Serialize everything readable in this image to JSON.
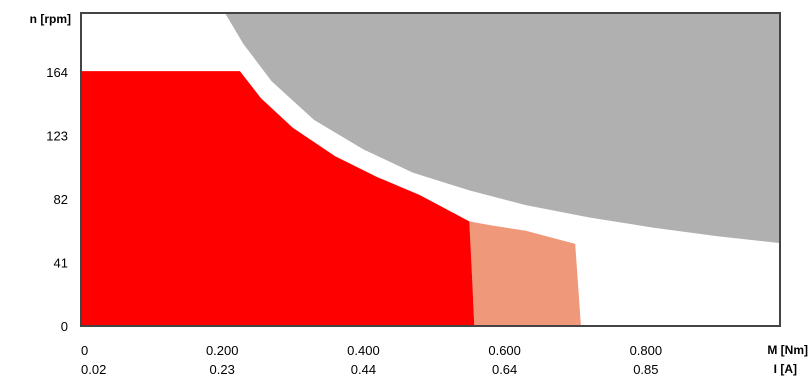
{
  "chart_data": {
    "type": "area",
    "title": "",
    "ylabel": "n [rpm]",
    "xlabel_primary": "M [Nm]",
    "xlabel_secondary": "I [A]",
    "xlim": [
      0,
      0.99
    ],
    "ylim": [
      0,
      202
    ],
    "x_ticks": [
      {
        "value": 0,
        "label": "0"
      },
      {
        "value": 0.2,
        "label": "0.200"
      },
      {
        "value": 0.4,
        "label": "0.400"
      },
      {
        "value": 0.6,
        "label": "0.600"
      },
      {
        "value": 0.8,
        "label": "0.800"
      }
    ],
    "x_secondary_ticks": [
      {
        "value": 0,
        "label": "0.02"
      },
      {
        "value": 0.2,
        "label": "0.23"
      },
      {
        "value": 0.4,
        "label": "0.44"
      },
      {
        "value": 0.6,
        "label": "0.64"
      },
      {
        "value": 0.8,
        "label": "0.85"
      }
    ],
    "y_ticks": [
      {
        "value": 0,
        "label": "0"
      },
      {
        "value": 41,
        "label": "41"
      },
      {
        "value": 82,
        "label": "82"
      },
      {
        "value": 123,
        "label": "123"
      },
      {
        "value": 164,
        "label": "164"
      }
    ],
    "grid": false,
    "colors": {
      "continuous_region": "#ff0000",
      "intermittent_region": "#f0987a",
      "limit_region": "#b0b0b0",
      "frame": "#444444"
    },
    "regions": [
      {
        "id": "limit-region",
        "color": "#b0b0b0",
        "points": [
          [
            0.204,
            202
          ],
          [
            0.23,
            182
          ],
          [
            0.27,
            158
          ],
          [
            0.33,
            133
          ],
          [
            0.4,
            114
          ],
          [
            0.47,
            99
          ],
          [
            0.55,
            87.5
          ],
          [
            0.63,
            78
          ],
          [
            0.72,
            70
          ],
          [
            0.81,
            63.5
          ],
          [
            0.9,
            58
          ],
          [
            0.99,
            53.5
          ],
          [
            0.99,
            202
          ]
        ]
      },
      {
        "id": "intermittent-region",
        "color": "#f0987a",
        "points": [
          [
            0.55,
            67.5
          ],
          [
            0.58,
            65
          ],
          [
            0.63,
            61.5
          ],
          [
            0.7,
            53
          ],
          [
            0.705,
            20
          ],
          [
            0.708,
            0
          ],
          [
            0.557,
            0
          ],
          [
            0.554,
            30
          ]
        ]
      },
      {
        "id": "continuous-region",
        "color": "#ff0000",
        "points": [
          [
            0,
            0
          ],
          [
            0,
            164.5
          ],
          [
            0.225,
            164.5
          ],
          [
            0.255,
            147
          ],
          [
            0.3,
            128
          ],
          [
            0.36,
            109.5
          ],
          [
            0.42,
            96
          ],
          [
            0.48,
            84.5
          ],
          [
            0.55,
            67.5
          ],
          [
            0.554,
            30
          ],
          [
            0.557,
            0
          ]
        ]
      }
    ]
  }
}
